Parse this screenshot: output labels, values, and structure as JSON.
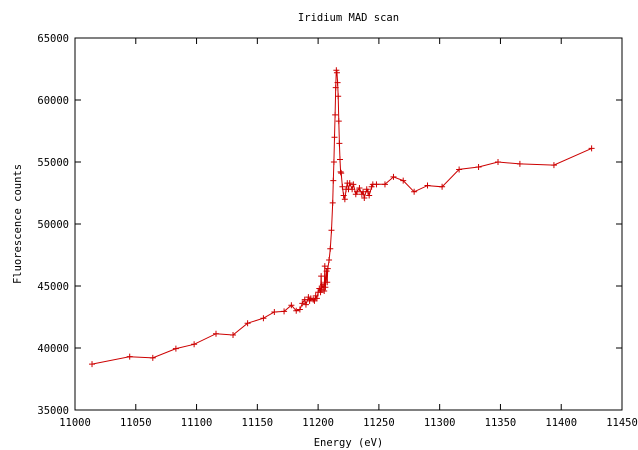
{
  "chart_data": {
    "type": "line",
    "title": "Iridium MAD scan",
    "xlabel": "Energy (eV)",
    "ylabel": "Fluorescence counts",
    "xlim": [
      11000,
      11450
    ],
    "ylim": [
      35000,
      65000
    ],
    "xticks": [
      11000,
      11050,
      11100,
      11150,
      11200,
      11250,
      11300,
      11350,
      11400,
      11450
    ],
    "yticks": [
      35000,
      40000,
      45000,
      50000,
      55000,
      60000,
      65000
    ],
    "grid": false,
    "legend": "none",
    "colors": {
      "series": "#cc0000",
      "axes": "#000000",
      "background": "#ffffff"
    },
    "series": [
      {
        "marker": "plus",
        "points": [
          [
            11014,
            38700
          ],
          [
            11045,
            39300
          ],
          [
            11064,
            39200
          ],
          [
            11083,
            39950
          ],
          [
            11098,
            40300
          ],
          [
            11116,
            41150
          ],
          [
            11130,
            41050
          ],
          [
            11142,
            42000
          ],
          [
            11155,
            42400
          ],
          [
            11164,
            42900
          ],
          [
            11172,
            42950
          ],
          [
            11178,
            43450
          ],
          [
            11182,
            43000
          ],
          [
            11185,
            43100
          ],
          [
            11187,
            43600
          ],
          [
            11189,
            43900
          ],
          [
            11190,
            43500
          ],
          [
            11192,
            44100
          ],
          [
            11193,
            43800
          ],
          [
            11194,
            44000
          ],
          [
            11196,
            43900
          ],
          [
            11197,
            43800
          ],
          [
            11198,
            44200
          ],
          [
            11199,
            44000
          ],
          [
            11200,
            44500
          ],
          [
            11201,
            44800
          ],
          [
            11202,
            44500
          ],
          [
            11202.5,
            45800
          ],
          [
            11203,
            44700
          ],
          [
            11204,
            45100
          ],
          [
            11205,
            44600
          ],
          [
            11205.5,
            46600
          ],
          [
            11206,
            44900
          ],
          [
            11207,
            46200
          ],
          [
            11207.5,
            45300
          ],
          [
            11208,
            46400
          ],
          [
            11209,
            47100
          ],
          [
            11210,
            48000
          ],
          [
            11211,
            49500
          ],
          [
            11212,
            51700
          ],
          [
            11212.5,
            53500
          ],
          [
            11213,
            55000
          ],
          [
            11213.5,
            57000
          ],
          [
            11214,
            58800
          ],
          [
            11214.5,
            61000
          ],
          [
            11215,
            62400
          ],
          [
            11215.5,
            62200
          ],
          [
            11216,
            61400
          ],
          [
            11216.5,
            60300
          ],
          [
            11217,
            58300
          ],
          [
            11217.5,
            56500
          ],
          [
            11218,
            55200
          ],
          [
            11218.5,
            54200
          ],
          [
            11219,
            54100
          ],
          [
            11220,
            53000
          ],
          [
            11221,
            52300
          ],
          [
            11222,
            52000
          ],
          [
            11223,
            52800
          ],
          [
            11224,
            53300
          ],
          [
            11225,
            52800
          ],
          [
            11226,
            53300
          ],
          [
            11228,
            52800
          ],
          [
            11229,
            53200
          ],
          [
            11231,
            52400
          ],
          [
            11232,
            52600
          ],
          [
            11234,
            52900
          ],
          [
            11236,
            52400
          ],
          [
            11237,
            52600
          ],
          [
            11238,
            52100
          ],
          [
            11240,
            52800
          ],
          [
            11241,
            52600
          ],
          [
            11242,
            52300
          ],
          [
            11244,
            53000
          ],
          [
            11245,
            53200
          ],
          [
            11248,
            53200
          ],
          [
            11255,
            53200
          ],
          [
            11262,
            53800
          ],
          [
            11270,
            53500
          ],
          [
            11279,
            52600
          ],
          [
            11290,
            53100
          ],
          [
            11302,
            53000
          ],
          [
            11316,
            54400
          ],
          [
            11332,
            54600
          ],
          [
            11348,
            55000
          ],
          [
            11366,
            54850
          ],
          [
            11394,
            54750
          ],
          [
            11425,
            56100
          ]
        ]
      }
    ]
  }
}
